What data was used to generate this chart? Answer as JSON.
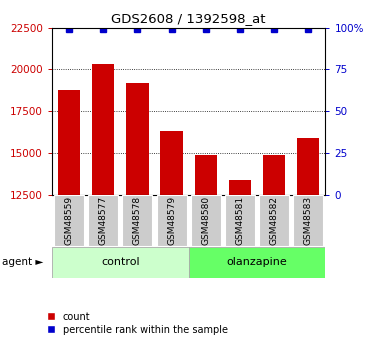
{
  "title": "GDS2608 / 1392598_at",
  "samples": [
    "GSM48559",
    "GSM48577",
    "GSM48578",
    "GSM48579",
    "GSM48580",
    "GSM48581",
    "GSM48582",
    "GSM48583"
  ],
  "counts": [
    18800,
    20300,
    19200,
    16300,
    14900,
    13400,
    14900,
    15900
  ],
  "percentiles": [
    99,
    99,
    99,
    99,
    99,
    99,
    99,
    99
  ],
  "bar_color": "#cc0000",
  "percentile_color": "#0000cc",
  "ylim_left": [
    12500,
    22500
  ],
  "ylim_right": [
    0,
    100
  ],
  "yticks_left": [
    12500,
    15000,
    17500,
    20000,
    22500
  ],
  "yticks_right": [
    0,
    25,
    50,
    75,
    100
  ],
  "ytick_labels_right": [
    "0",
    "25",
    "50",
    "75",
    "100%"
  ],
  "control_color": "#ccffcc",
  "olanzapine_color": "#66ff66",
  "tick_label_color_left": "#cc0000",
  "tick_label_color_right": "#0000cc",
  "agent_label": "agent ►",
  "control_label": "control",
  "olanzapine_label": "olanzapine",
  "legend_count": "count",
  "legend_percentile": "percentile rank within the sample"
}
